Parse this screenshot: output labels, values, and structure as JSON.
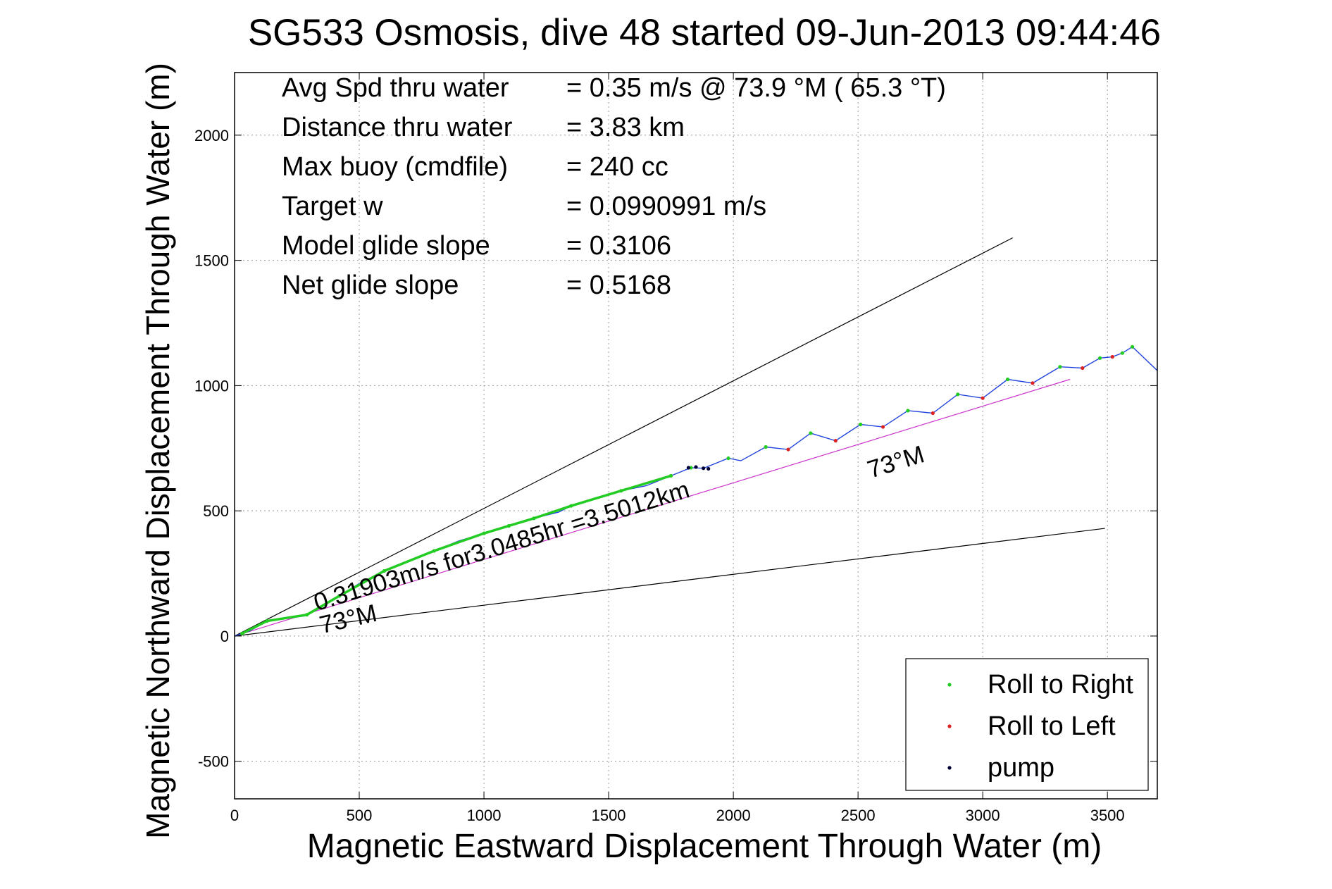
{
  "chart_data": {
    "type": "line",
    "title": "SG533 Osmosis, dive 48 started 09-Jun-2013 09:44:46",
    "xlabel": "Magnetic Eastward Displacement Through Water (m)",
    "ylabel": "Magnetic Northward Displacement Through Water (m)",
    "xlim": [
      0,
      3700
    ],
    "ylim": [
      -650,
      2250
    ],
    "xticks": [
      "0",
      "500",
      "1000",
      "1500",
      "2000",
      "2500",
      "3000",
      "3500"
    ],
    "yticks": [
      "-500",
      "0",
      "500",
      "1000",
      "1500",
      "2000"
    ],
    "grid": true,
    "legend_position": "bottom-right",
    "stats": [
      {
        "label": "Avg Spd thru water",
        "value": "=  0.35 m/s @  73.9 °M ( 65.3 °T)"
      },
      {
        "label": "Distance thru water",
        "value": "=  3.83 km"
      },
      {
        "label": "Max buoy (cmdfile)",
        "value": "= 240 cc"
      },
      {
        "label": "Target w",
        "value": "= 0.0990991 m/s"
      },
      {
        "label": "Model glide slope",
        "value": "= 0.3106"
      },
      {
        "label": "Net glide slope",
        "value": "= 0.5168"
      }
    ],
    "annotations": [
      {
        "text": "0.31903m/s for3.0485hr =3.5012km",
        "x": 330,
        "y": 100,
        "angle_deg": -17
      },
      {
        "text": "73°M",
        "x": 350,
        "y": 10,
        "angle_deg": -13
      },
      {
        "text": "73°M",
        "x": 2550,
        "y": 630,
        "angle_deg": -17
      }
    ],
    "reference_lines": [
      {
        "color": "#000000",
        "x": [
          0,
          3120
        ],
        "y": [
          0,
          1590
        ]
      },
      {
        "color": "#000000",
        "x": [
          0,
          3490
        ],
        "y": [
          0,
          430
        ]
      },
      {
        "color": "#cc33cc",
        "x": [
          0,
          3350
        ],
        "y": [
          0,
          1025
        ]
      }
    ],
    "series": [
      {
        "color": "#2244dd",
        "x": [
          0,
          60,
          130,
          200,
          280,
          340,
          420,
          500,
          600,
          700,
          800,
          900,
          1000,
          1100,
          1200,
          1300,
          1350,
          1450,
          1550,
          1650,
          1750,
          1830,
          1880,
          1980,
          2030,
          2130,
          2220,
          2310,
          2410,
          2510,
          2600,
          2700,
          2800,
          2900,
          3000,
          3100,
          3200,
          3310,
          3400,
          3470,
          3520,
          3560,
          3600,
          3700
        ],
        "y": [
          0,
          20,
          60,
          70,
          80,
          110,
          160,
          210,
          260,
          300,
          340,
          380,
          410,
          440,
          470,
          495,
          520,
          550,
          580,
          600,
          640,
          672,
          670,
          710,
          700,
          755,
          745,
          810,
          780,
          845,
          835,
          900,
          890,
          965,
          950,
          1025,
          1010,
          1075,
          1070,
          1110,
          1115,
          1130,
          1155,
          1060
        ]
      },
      {
        "name": "Roll to Right",
        "color": "#22cc22",
        "x": [
          30,
          130,
          290,
          420,
          600,
          800,
          1000,
          1100,
          1200,
          1350,
          1550,
          1750,
          1830,
          1980,
          2130,
          2310,
          2510,
          2700,
          2900,
          3100,
          3310,
          3470,
          3560,
          3600
        ],
        "y": [
          10,
          60,
          85,
          160,
          260,
          340,
          410,
          440,
          470,
          520,
          580,
          640,
          672,
          710,
          755,
          810,
          845,
          900,
          965,
          1025,
          1075,
          1110,
          1130,
          1155
        ]
      },
      {
        "name": "Roll to Left",
        "color": "#dd2222",
        "x": [
          2220,
          2410,
          2600,
          2800,
          3000,
          3200,
          3400,
          3520
        ],
        "y": [
          745,
          780,
          835,
          890,
          950,
          1010,
          1070,
          1115
        ]
      },
      {
        "name": "pump",
        "color": "#000033",
        "x": [
          1820,
          1850,
          1880,
          1900
        ],
        "y": [
          672,
          675,
          670,
          668
        ]
      }
    ]
  }
}
